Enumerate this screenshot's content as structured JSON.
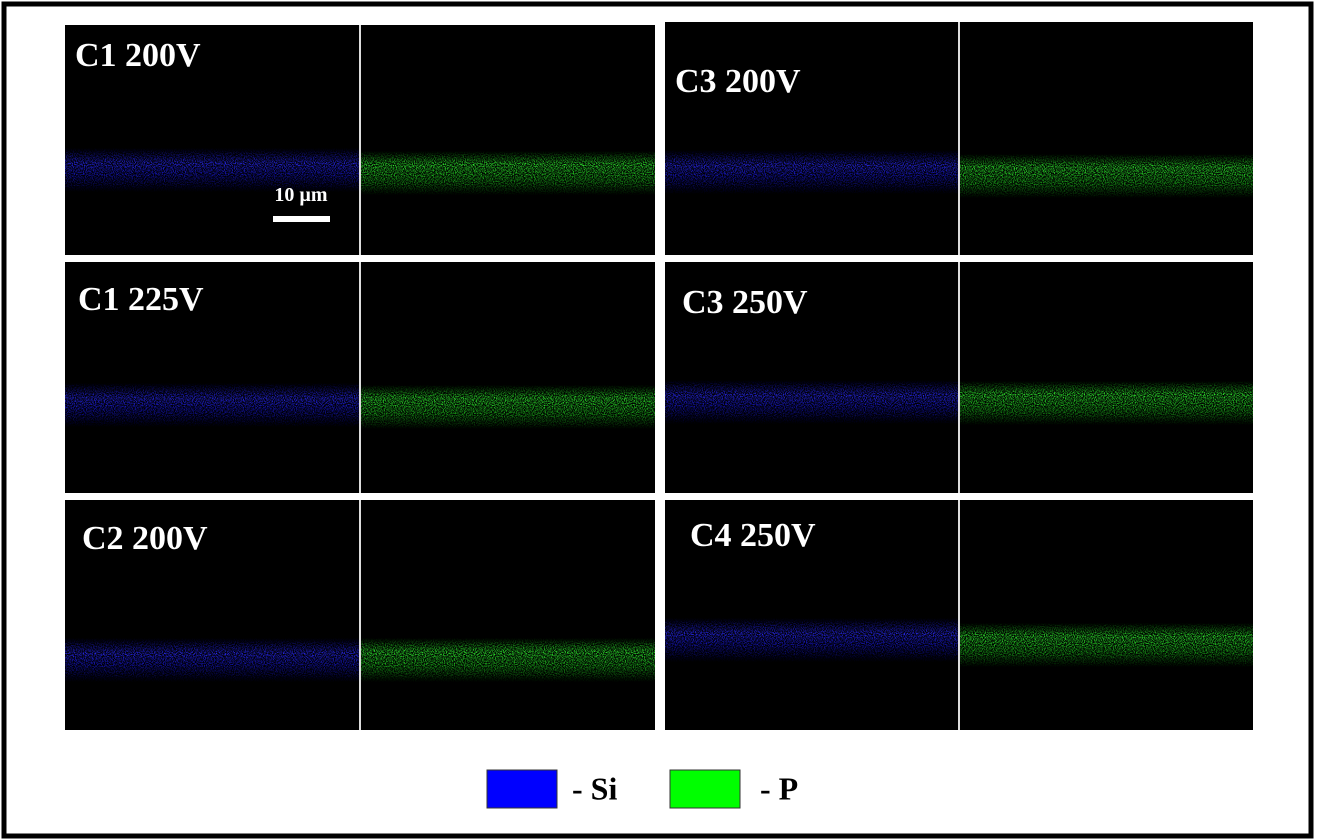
{
  "panels": [
    {
      "label": "C1 200V"
    },
    {
      "label": "C3 200V"
    },
    {
      "label": "C1 225V"
    },
    {
      "label": "C3 250V"
    },
    {
      "label": "C2 200V"
    },
    {
      "label": "C4 250V"
    }
  ],
  "scale_bar": {
    "label": "10 µm"
  },
  "legend": [
    {
      "label": "- Si",
      "color": "#0000ff"
    },
    {
      "label": "- P",
      "color": "#00ff00"
    }
  ]
}
